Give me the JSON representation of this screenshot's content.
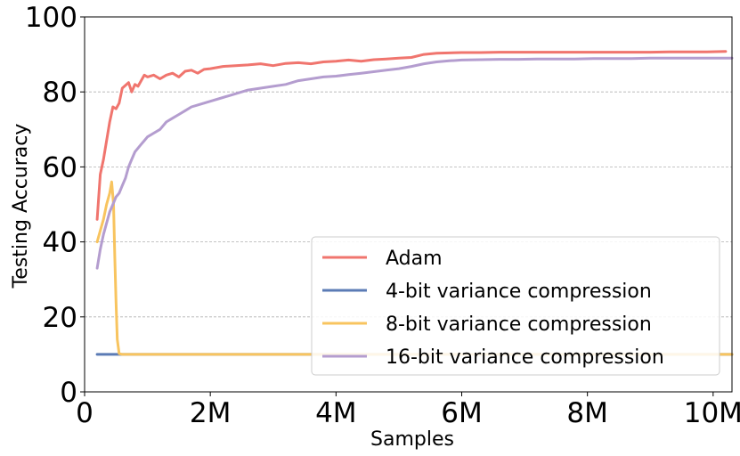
{
  "chart_data": {
    "type": "line",
    "xlabel": "Samples",
    "ylabel": "Testing Accuracy",
    "xlim": [
      0,
      10300000
    ],
    "ylim": [
      0,
      100
    ],
    "x_ticks": [
      0,
      2000000,
      4000000,
      6000000,
      8000000,
      10000000
    ],
    "x_tick_labels": [
      "0",
      "2M",
      "4M",
      "6M",
      "8M",
      "10M"
    ],
    "y_ticks": [
      0,
      20,
      40,
      60,
      80,
      100
    ],
    "y_tick_labels": [
      "0",
      "20",
      "40",
      "60",
      "80",
      "100"
    ],
    "grid": "horizontal dashed",
    "legend_position": "lower right",
    "series": [
      {
        "name": "Adam",
        "color": "#f0756e",
        "points": [
          [
            200000,
            46
          ],
          [
            250000,
            58
          ],
          [
            300000,
            62
          ],
          [
            350000,
            67
          ],
          [
            400000,
            72
          ],
          [
            450000,
            76
          ],
          [
            500000,
            75.5
          ],
          [
            550000,
            77
          ],
          [
            600000,
            81
          ],
          [
            700000,
            82.5
          ],
          [
            750000,
            80
          ],
          [
            800000,
            82
          ],
          [
            850000,
            81.5
          ],
          [
            900000,
            83
          ],
          [
            950000,
            84.5
          ],
          [
            1000000,
            84
          ],
          [
            1100000,
            84.5
          ],
          [
            1200000,
            83.5
          ],
          [
            1300000,
            84.5
          ],
          [
            1400000,
            85
          ],
          [
            1500000,
            84
          ],
          [
            1600000,
            85.5
          ],
          [
            1700000,
            85.8
          ],
          [
            1800000,
            85
          ],
          [
            1900000,
            86
          ],
          [
            2000000,
            86.2
          ],
          [
            2200000,
            86.8
          ],
          [
            2400000,
            87
          ],
          [
            2600000,
            87.2
          ],
          [
            2800000,
            87.5
          ],
          [
            3000000,
            87
          ],
          [
            3200000,
            87.6
          ],
          [
            3400000,
            87.8
          ],
          [
            3600000,
            87.5
          ],
          [
            3800000,
            88
          ],
          [
            4000000,
            88.2
          ],
          [
            4200000,
            88.5
          ],
          [
            4400000,
            88.2
          ],
          [
            4600000,
            88.6
          ],
          [
            4800000,
            88.8
          ],
          [
            5000000,
            89
          ],
          [
            5200000,
            89.2
          ],
          [
            5400000,
            90
          ],
          [
            5600000,
            90.3
          ],
          [
            5800000,
            90.4
          ],
          [
            6000000,
            90.5
          ],
          [
            6300000,
            90.5
          ],
          [
            6600000,
            90.6
          ],
          [
            6900000,
            90.6
          ],
          [
            7200000,
            90.6
          ],
          [
            7500000,
            90.6
          ],
          [
            7800000,
            90.6
          ],
          [
            8100000,
            90.6
          ],
          [
            8400000,
            90.6
          ],
          [
            8700000,
            90.6
          ],
          [
            9000000,
            90.6
          ],
          [
            9300000,
            90.7
          ],
          [
            9600000,
            90.7
          ],
          [
            9900000,
            90.7
          ],
          [
            10200000,
            90.8
          ]
        ]
      },
      {
        "name": "4-bit variance compression",
        "color": "#5b7bb5",
        "points": [
          [
            200000,
            10
          ],
          [
            700000,
            10
          ],
          [
            1500000,
            10
          ],
          [
            3000000,
            10
          ],
          [
            5000000,
            10
          ],
          [
            7000000,
            10
          ],
          [
            9000000,
            10
          ],
          [
            10300000,
            10
          ]
        ]
      },
      {
        "name": "8-bit variance compression",
        "color": "#f8c45f",
        "points": [
          [
            200000,
            40
          ],
          [
            250000,
            43
          ],
          [
            300000,
            46
          ],
          [
            350000,
            50
          ],
          [
            400000,
            53
          ],
          [
            430000,
            56
          ],
          [
            460000,
            50
          ],
          [
            480000,
            36
          ],
          [
            500000,
            24
          ],
          [
            520000,
            14
          ],
          [
            550000,
            10.2
          ],
          [
            600000,
            10
          ],
          [
            1000000,
            10
          ],
          [
            2000000,
            10
          ],
          [
            4000000,
            10
          ],
          [
            6000000,
            10
          ],
          [
            8000000,
            10
          ],
          [
            10300000,
            10
          ]
        ]
      },
      {
        "name": "16-bit variance compression",
        "color": "#b49dcf",
        "points": [
          [
            200000,
            33
          ],
          [
            250000,
            38
          ],
          [
            300000,
            42
          ],
          [
            350000,
            45
          ],
          [
            400000,
            48
          ],
          [
            450000,
            50
          ],
          [
            500000,
            52
          ],
          [
            550000,
            53
          ],
          [
            600000,
            55
          ],
          [
            650000,
            57
          ],
          [
            700000,
            60
          ],
          [
            750000,
            62
          ],
          [
            800000,
            64
          ],
          [
            850000,
            65
          ],
          [
            900000,
            66
          ],
          [
            950000,
            67
          ],
          [
            1000000,
            68
          ],
          [
            1100000,
            69
          ],
          [
            1200000,
            70
          ],
          [
            1300000,
            72
          ],
          [
            1400000,
            73
          ],
          [
            1500000,
            74
          ],
          [
            1600000,
            75
          ],
          [
            1700000,
            76
          ],
          [
            1800000,
            76.5
          ],
          [
            1900000,
            77
          ],
          [
            2000000,
            77.5
          ],
          [
            2200000,
            78.5
          ],
          [
            2400000,
            79.5
          ],
          [
            2600000,
            80.5
          ],
          [
            2800000,
            81
          ],
          [
            3000000,
            81.5
          ],
          [
            3200000,
            82
          ],
          [
            3400000,
            83
          ],
          [
            3600000,
            83.5
          ],
          [
            3800000,
            84
          ],
          [
            4000000,
            84.2
          ],
          [
            4200000,
            84.6
          ],
          [
            4400000,
            85
          ],
          [
            4600000,
            85.4
          ],
          [
            4800000,
            85.8
          ],
          [
            5000000,
            86.2
          ],
          [
            5200000,
            86.8
          ],
          [
            5400000,
            87.5
          ],
          [
            5600000,
            88
          ],
          [
            5800000,
            88.3
          ],
          [
            6000000,
            88.5
          ],
          [
            6300000,
            88.6
          ],
          [
            6600000,
            88.7
          ],
          [
            6900000,
            88.7
          ],
          [
            7200000,
            88.8
          ],
          [
            7500000,
            88.8
          ],
          [
            7800000,
            88.8
          ],
          [
            8100000,
            88.9
          ],
          [
            8400000,
            88.9
          ],
          [
            8700000,
            88.9
          ],
          [
            9000000,
            89
          ],
          [
            9300000,
            89
          ],
          [
            9600000,
            89
          ],
          [
            9900000,
            89
          ],
          [
            10300000,
            89
          ]
        ]
      }
    ]
  }
}
